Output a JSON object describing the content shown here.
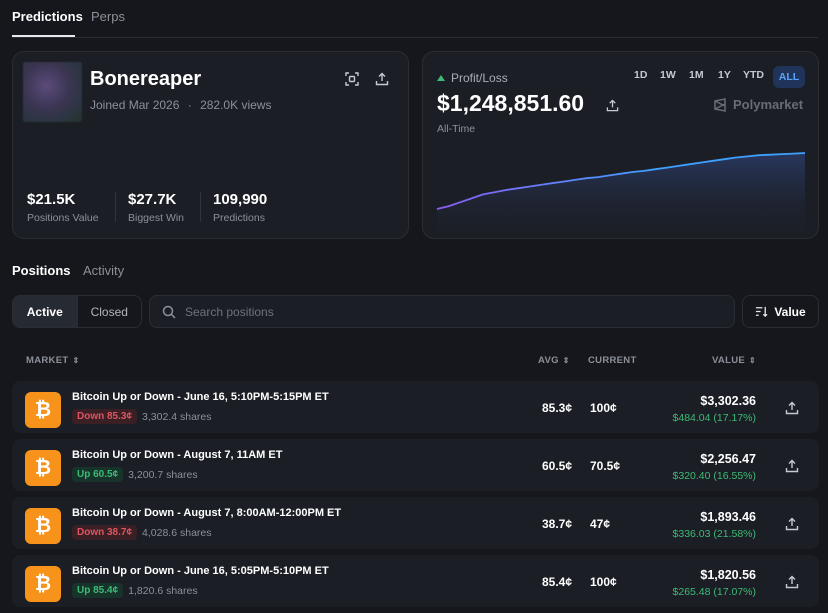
{
  "top_tabs": [
    {
      "label": "Predictions",
      "active": true
    },
    {
      "label": "Perps",
      "active": false
    }
  ],
  "profile": {
    "name": "Bonereaper",
    "joined": "Joined Mar 2026",
    "separator": "·",
    "views": "282.0K views",
    "stats": [
      {
        "value": "$21.5K",
        "label": "Positions Value"
      },
      {
        "value": "$27.7K",
        "label": "Biggest Win"
      },
      {
        "value": "109,990",
        "label": "Predictions"
      }
    ]
  },
  "pnl": {
    "label": "Profit/Loss",
    "value": "$1,248,851.60",
    "period": "All-Time",
    "ranges": [
      "1D",
      "1W",
      "1M",
      "1Y",
      "YTD",
      "ALL"
    ],
    "active_range": "ALL",
    "brand": "Polymarket"
  },
  "chart_data": {
    "type": "area",
    "title": "",
    "xlabel": "",
    "ylabel": "",
    "y": [
      0.0,
      0.05,
      0.12,
      0.19,
      0.26,
      0.3,
      0.34,
      0.37,
      0.4,
      0.43,
      0.46,
      0.49,
      0.52,
      0.55,
      0.57,
      0.6,
      0.63,
      0.66,
      0.68,
      0.71,
      0.74,
      0.77,
      0.8,
      0.83,
      0.86,
      0.89,
      0.92,
      0.94,
      0.96,
      0.97,
      0.98,
      0.99,
      1.0
    ],
    "grid": false,
    "legend": "none",
    "line_color_start": "#8b5cf6",
    "line_color_end": "#3ea0ff"
  },
  "section_tabs": [
    {
      "label": "Positions",
      "active": true
    },
    {
      "label": "Activity",
      "active": false
    }
  ],
  "filters": {
    "active_label": "Active",
    "closed_label": "Closed",
    "search_placeholder": "Search positions",
    "sort_label": "Value"
  },
  "table": {
    "headers": {
      "market": "MARKET",
      "avg": "AVG",
      "current": "CURRENT",
      "value": "VALUE"
    },
    "rows": [
      {
        "title": "Bitcoin Up or Down - June 16, 5:10PM-5:15PM ET",
        "side": "Down 85.3¢",
        "side_type": "down",
        "shares": "3,302.4 shares",
        "avg": "85.3¢",
        "current": "100¢",
        "value": "$3,302.36",
        "gain": "$484.04 (17.17%)"
      },
      {
        "title": "Bitcoin Up or Down - August 7, 11AM ET",
        "side": "Up 60.5¢",
        "side_type": "up",
        "shares": "3,200.7 shares",
        "avg": "60.5¢",
        "current": "70.5¢",
        "value": "$2,256.47",
        "gain": "$320.40 (16.55%)"
      },
      {
        "title": "Bitcoin Up or Down - August 7, 8:00AM-12:00PM ET",
        "side": "Down 38.7¢",
        "side_type": "down",
        "shares": "4,028.6 shares",
        "avg": "38.7¢",
        "current": "47¢",
        "value": "$1,893.46",
        "gain": "$336.03 (21.58%)"
      },
      {
        "title": "Bitcoin Up or Down - June 16, 5:05PM-5:10PM ET",
        "side": "Up 85.4¢",
        "side_type": "up",
        "shares": "1,820.6 shares",
        "avg": "85.4¢",
        "current": "100¢",
        "value": "$1,820.56",
        "gain": "$265.48 (17.07%)"
      }
    ]
  },
  "colors": {
    "background": "#15171c",
    "card": "#1b1e24",
    "accent_blue": "#3ea0ff",
    "gain_green": "#3dbb77",
    "loss_red": "#e05561",
    "bitcoin_orange": "#f7931a"
  }
}
